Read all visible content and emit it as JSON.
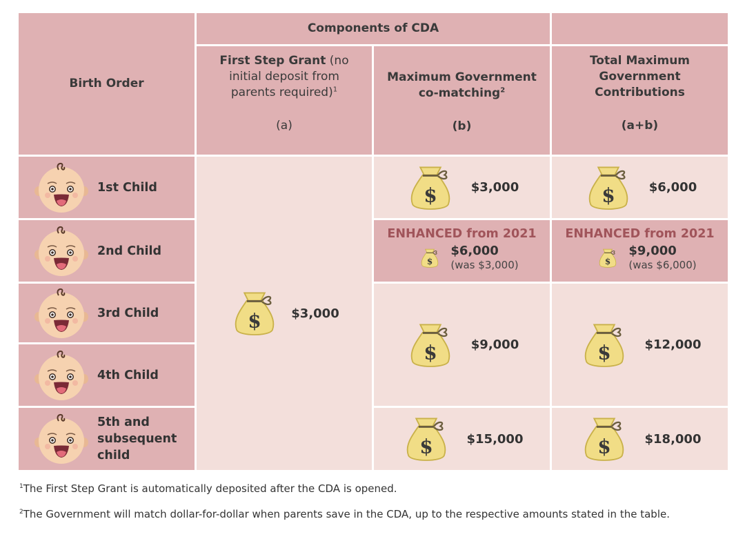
{
  "header": {
    "birth_order": "Birth Order",
    "components": "Components of CDA",
    "col_a_title_bold": "First Step Grant",
    "col_a_title_rest": " (no initial deposit from parents required)",
    "col_a_sup": "1",
    "col_a_key": "(a)",
    "col_b_title": "Maximum Government co-matching",
    "col_b_sup": "2",
    "col_b_key": "(b)",
    "col_c_title": "Total Maximum Government Contributions",
    "col_c_key": "(a+b)"
  },
  "first_step_grant": "$3,000",
  "rows": [
    {
      "child": "1st Child",
      "b": "$3,000",
      "c": "$6,000"
    },
    {
      "child": "2nd Child",
      "enhanced": "ENHANCED from 2021",
      "b": "$6,000",
      "b_was": "(was $3,000)",
      "c": "$9,000",
      "c_was": "(was $6,000)"
    },
    {
      "child": "3rd Child"
    },
    {
      "child": "4th Child"
    },
    {
      "child": "5th and subsequent child",
      "b": "$15,000",
      "c": "$18,000"
    }
  ],
  "merged_3_4": {
    "b": "$9,000",
    "c": "$12,000"
  },
  "footnotes": {
    "n1_sup": "1",
    "n1": "The First Step Grant is automatically deposited after the CDA is opened.",
    "n2_sup": "2",
    "n2": "The Government will match dollar-for-dollar when parents save in the CDA, up to the respective amounts stated in the table."
  },
  "colors": {
    "dark": "#dfb1b3",
    "light": "#f3dfdb",
    "enhanced": "#a0545a"
  }
}
